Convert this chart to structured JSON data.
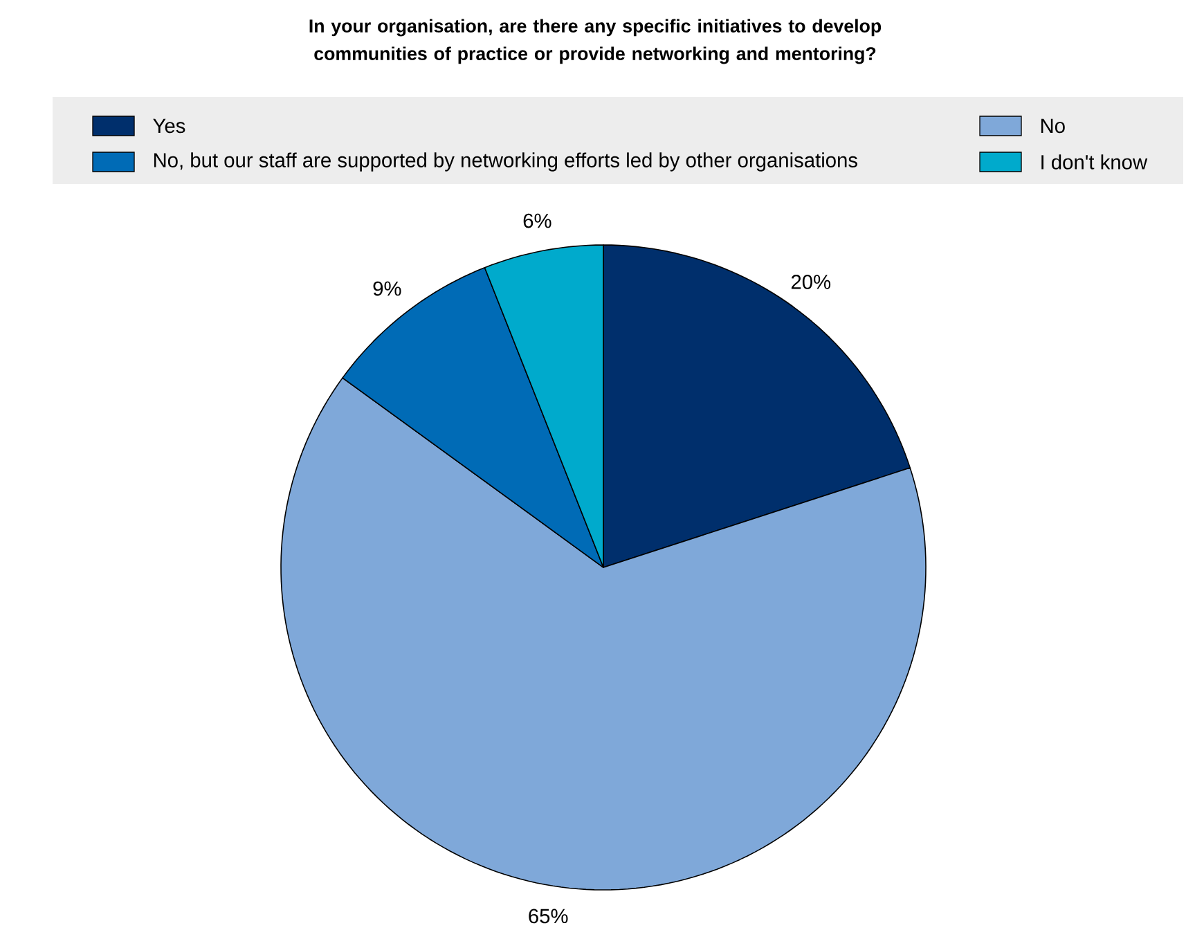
{
  "chart_data": {
    "type": "pie",
    "title": "In your organisation, are there any specific initiatives to develop communities of practice or provide networking and mentoring?",
    "categories": [
      "Yes",
      "No",
      "No, but our staff are supported by networking efforts led by other organisations",
      "I don't know"
    ],
    "values": [
      20,
      65,
      9,
      6
    ],
    "value_labels": [
      "20%",
      "65%",
      "9%",
      "6%"
    ],
    "colors": [
      "#002f6c",
      "#7fa8d9",
      "#006bb6",
      "#00aacc"
    ],
    "legend": "top"
  }
}
